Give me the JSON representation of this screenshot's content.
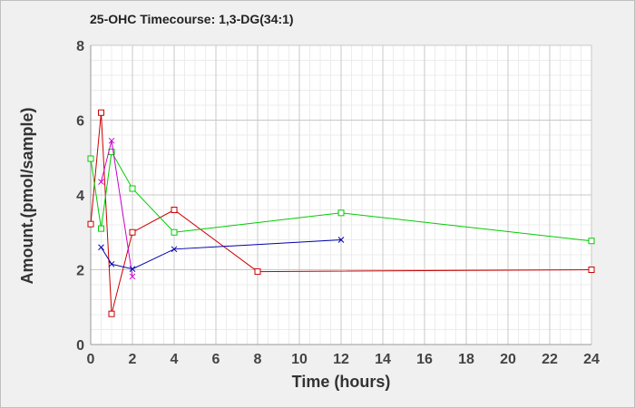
{
  "chart_data": {
    "type": "line",
    "title": "25-OHC Timecourse: 1,3-DG(34:1)",
    "xlabel": "Time (hours)",
    "ylabel": "Amount.(pmol/sample)",
    "xlim": [
      0,
      24
    ],
    "ylim": [
      0,
      8
    ],
    "x_ticks": [
      0,
      2,
      4,
      6,
      8,
      10,
      12,
      14,
      16,
      18,
      20,
      22,
      24
    ],
    "y_ticks": [
      0,
      2,
      4,
      6,
      8
    ],
    "grid": true,
    "series": [
      {
        "color": "#cc0000",
        "marker": "square",
        "points": [
          [
            0,
            3.22
          ],
          [
            0.5,
            6.2
          ],
          [
            1,
            0.82
          ],
          [
            2,
            3.0
          ],
          [
            4,
            3.6
          ],
          [
            8,
            1.95
          ],
          [
            24,
            2.0
          ]
        ]
      },
      {
        "color": "#00cc00",
        "marker": "square",
        "points": [
          [
            0,
            4.97
          ],
          [
            0.5,
            3.1
          ],
          [
            1,
            5.15
          ],
          [
            2,
            4.17
          ],
          [
            4,
            3.0
          ],
          [
            12,
            3.52
          ],
          [
            24,
            2.77
          ]
        ]
      },
      {
        "color": "#cc00cc",
        "marker": "x",
        "points": [
          [
            0.5,
            4.35
          ],
          [
            1,
            5.45
          ],
          [
            2,
            1.82
          ]
        ]
      },
      {
        "color": "#0000aa",
        "marker": "x",
        "points": [
          [
            0.5,
            2.6
          ],
          [
            1,
            2.15
          ],
          [
            2,
            2.02
          ],
          [
            4,
            2.55
          ],
          [
            12,
            2.8
          ]
        ]
      }
    ]
  }
}
